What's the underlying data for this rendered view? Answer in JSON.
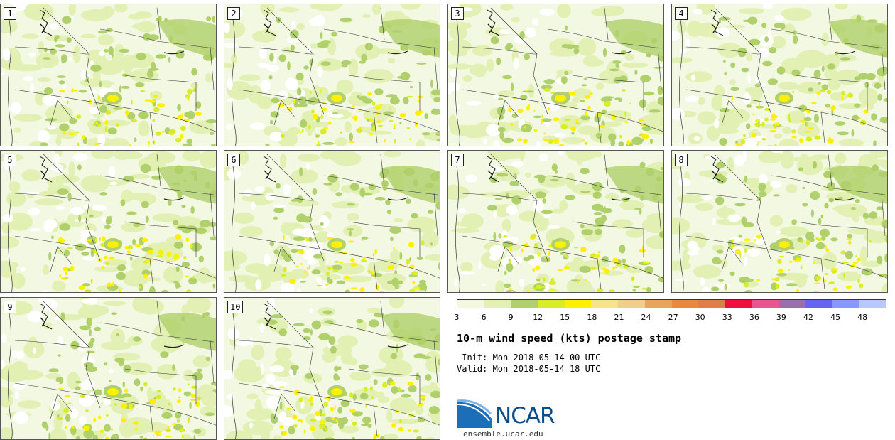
{
  "panels": [
    {
      "label": "1"
    },
    {
      "label": "2"
    },
    {
      "label": "3"
    },
    {
      "label": "4"
    },
    {
      "label": "5"
    },
    {
      "label": "6"
    },
    {
      "label": "7"
    },
    {
      "label": "8"
    },
    {
      "label": "9"
    },
    {
      "label": "10"
    }
  ],
  "colorbar": {
    "colors": [
      "#f3f8de",
      "#e2f0b4",
      "#afd06a",
      "#d8ec28",
      "#fff000",
      "#f7e489",
      "#f2ce8c",
      "#e8a55a",
      "#e88a3d",
      "#e07e48",
      "#ee0f3d",
      "#e85591",
      "#9a6fab",
      "#6565f2",
      "#8897ff",
      "#b7c8fa"
    ],
    "ticks": [
      "3",
      "6",
      "9",
      "12",
      "15",
      "18",
      "21",
      "24",
      "27",
      "30",
      "33",
      "36",
      "39",
      "42",
      "45",
      "48"
    ]
  },
  "title": "10-m wind speed (kts) postage stamp",
  "init": " Init: Mon 2018-05-14 00 UTC",
  "valid": "Valid: Mon 2018-05-14 18 UTC",
  "logo": {
    "name": "NCAR",
    "url": "ensemble.ucar.edu"
  }
}
